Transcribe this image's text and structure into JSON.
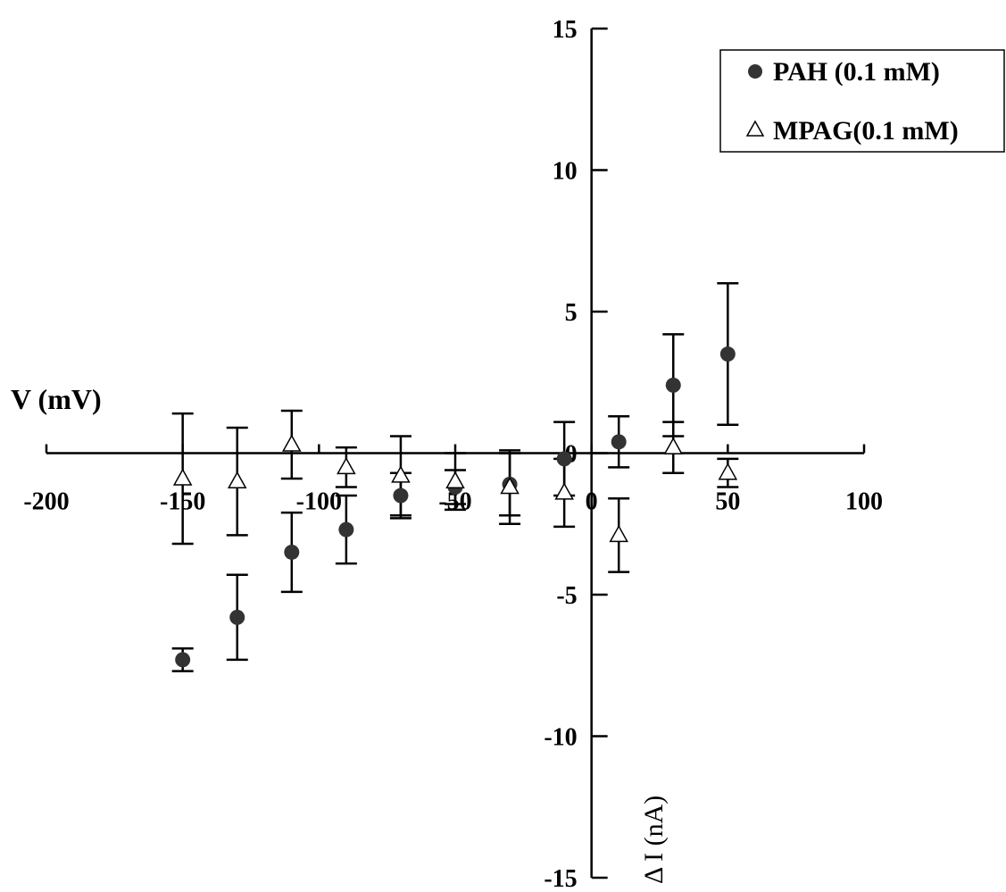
{
  "chart_data": {
    "type": "scatter",
    "title": "",
    "xlabel": "V (mV)",
    "ylabel": "Δ I (nA)",
    "xlim": [
      -200,
      100
    ],
    "ylim": [
      -15,
      15
    ],
    "x_ticks": [
      -200,
      -150,
      -100,
      -50,
      0,
      50,
      100
    ],
    "x_tick_labels": [
      "-200",
      "-150",
      "-100",
      "-50",
      "0",
      "50",
      "100"
    ],
    "y_ticks": [
      -15,
      -10,
      -5,
      0,
      5,
      10,
      15
    ],
    "y_tick_labels": [
      "-15",
      "-10",
      "-5",
      "0",
      "5",
      "10",
      "15"
    ],
    "grid": false,
    "legend_position": "top-right",
    "series": [
      {
        "name": "PAH (0.1 mM)",
        "marker": "filled-circle",
        "color": "#333333",
        "x": [
          -150,
          -130,
          -110,
          -90,
          -70,
          -50,
          -30,
          -10,
          10,
          30,
          50
        ],
        "y": [
          -7.3,
          -5.8,
          -3.5,
          -2.7,
          -1.5,
          -1.2,
          -1.1,
          -0.2,
          0.4,
          2.4,
          3.5
        ],
        "err": [
          0.4,
          1.5,
          1.4,
          1.2,
          0.8,
          0.6,
          1.1,
          1.3,
          0.9,
          1.8,
          2.5
        ]
      },
      {
        "name": "MPAG(0.1 mM)",
        "marker": "open-triangle",
        "color": "#000000",
        "x": [
          -150,
          -130,
          -110,
          -90,
          -70,
          -50,
          -30,
          -10,
          10,
          30,
          50
        ],
        "y": [
          -0.9,
          -1.0,
          0.3,
          -0.5,
          -0.8,
          -1.0,
          -1.2,
          -1.4,
          -2.9,
          0.2,
          -0.7
        ],
        "err": [
          2.3,
          1.9,
          1.2,
          0.7,
          1.4,
          1.0,
          1.3,
          1.2,
          1.3,
          0.9,
          0.5
        ]
      }
    ]
  }
}
